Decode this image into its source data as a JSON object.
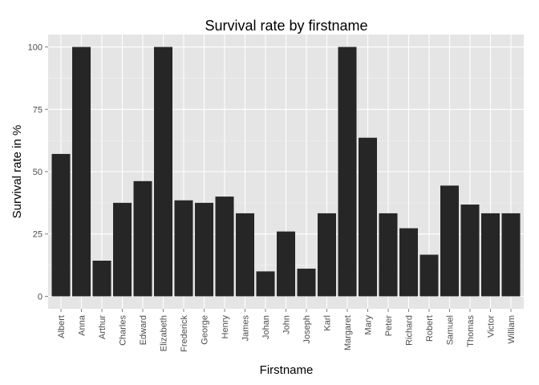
{
  "chart_data": {
    "type": "bar",
    "title": "Survival rate by firstname",
    "xlabel": "Firstname",
    "ylabel": "Survival rate in %",
    "categories": [
      "Albert",
      "Anna",
      "Arthur",
      "Charles",
      "Edward",
      "Elizabeth",
      "Frederick",
      "George",
      "Henry",
      "James",
      "Johan",
      "John",
      "Joseph",
      "Karl",
      "Margaret",
      "Mary",
      "Peter",
      "Richard",
      "Robert",
      "Samuel",
      "Thomas",
      "Victor",
      "William"
    ],
    "values": [
      57.1,
      100,
      14.3,
      37.5,
      46.2,
      100,
      38.5,
      37.5,
      40.0,
      33.3,
      10.0,
      26.0,
      11.1,
      33.3,
      100,
      63.6,
      33.3,
      27.3,
      16.7,
      44.4,
      36.8,
      33.3,
      33.3
    ],
    "ylim": [
      -5,
      105
    ],
    "yticks": [
      0,
      25,
      50,
      75,
      100
    ],
    "ytick_labels": [
      "0",
      "25",
      "50",
      "75",
      "100"
    ],
    "grid": true,
    "legend": "none",
    "colors": {
      "bar": "#262626",
      "panel_background": "#e5e5e5",
      "grid_major": "#ffffff",
      "grid_minor": "#f2f2f2",
      "tick_text": "#4d4d4d",
      "tick_mark": "#7f7f7f"
    }
  }
}
